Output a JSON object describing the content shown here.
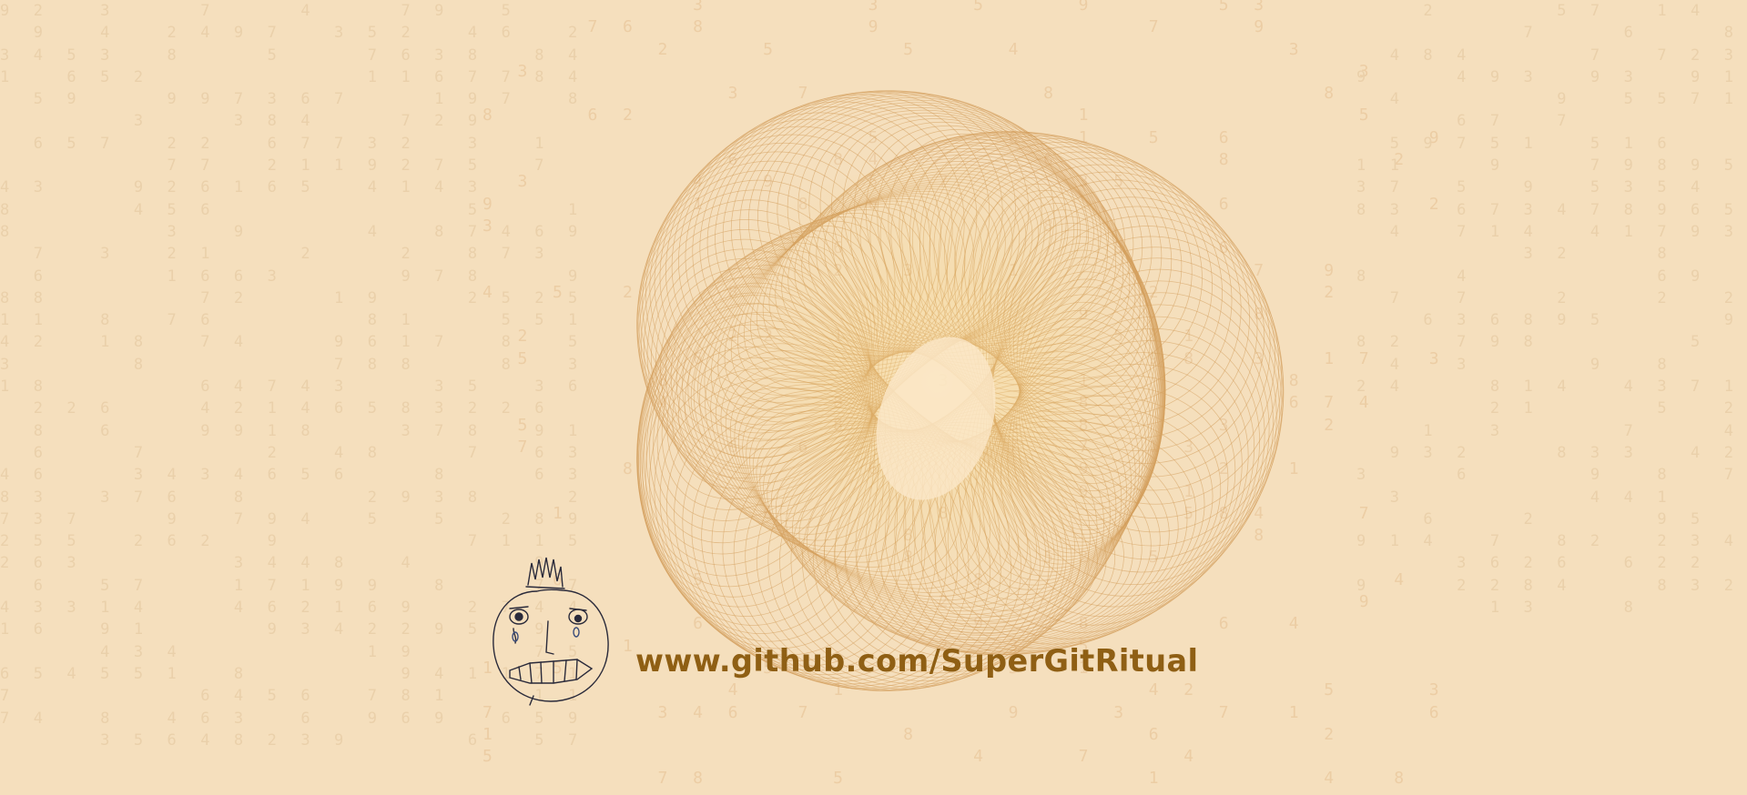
{
  "background_color": "#f5dfbd",
  "accent_color": "#d69a52",
  "text_color": "#8f5f14",
  "url": "www.github.com/SuperGitRitual",
  "decorations": {
    "background": "faint-number-grid",
    "artwork": "spirograph-torus-knot",
    "doodle": "crowned-face-icon"
  }
}
